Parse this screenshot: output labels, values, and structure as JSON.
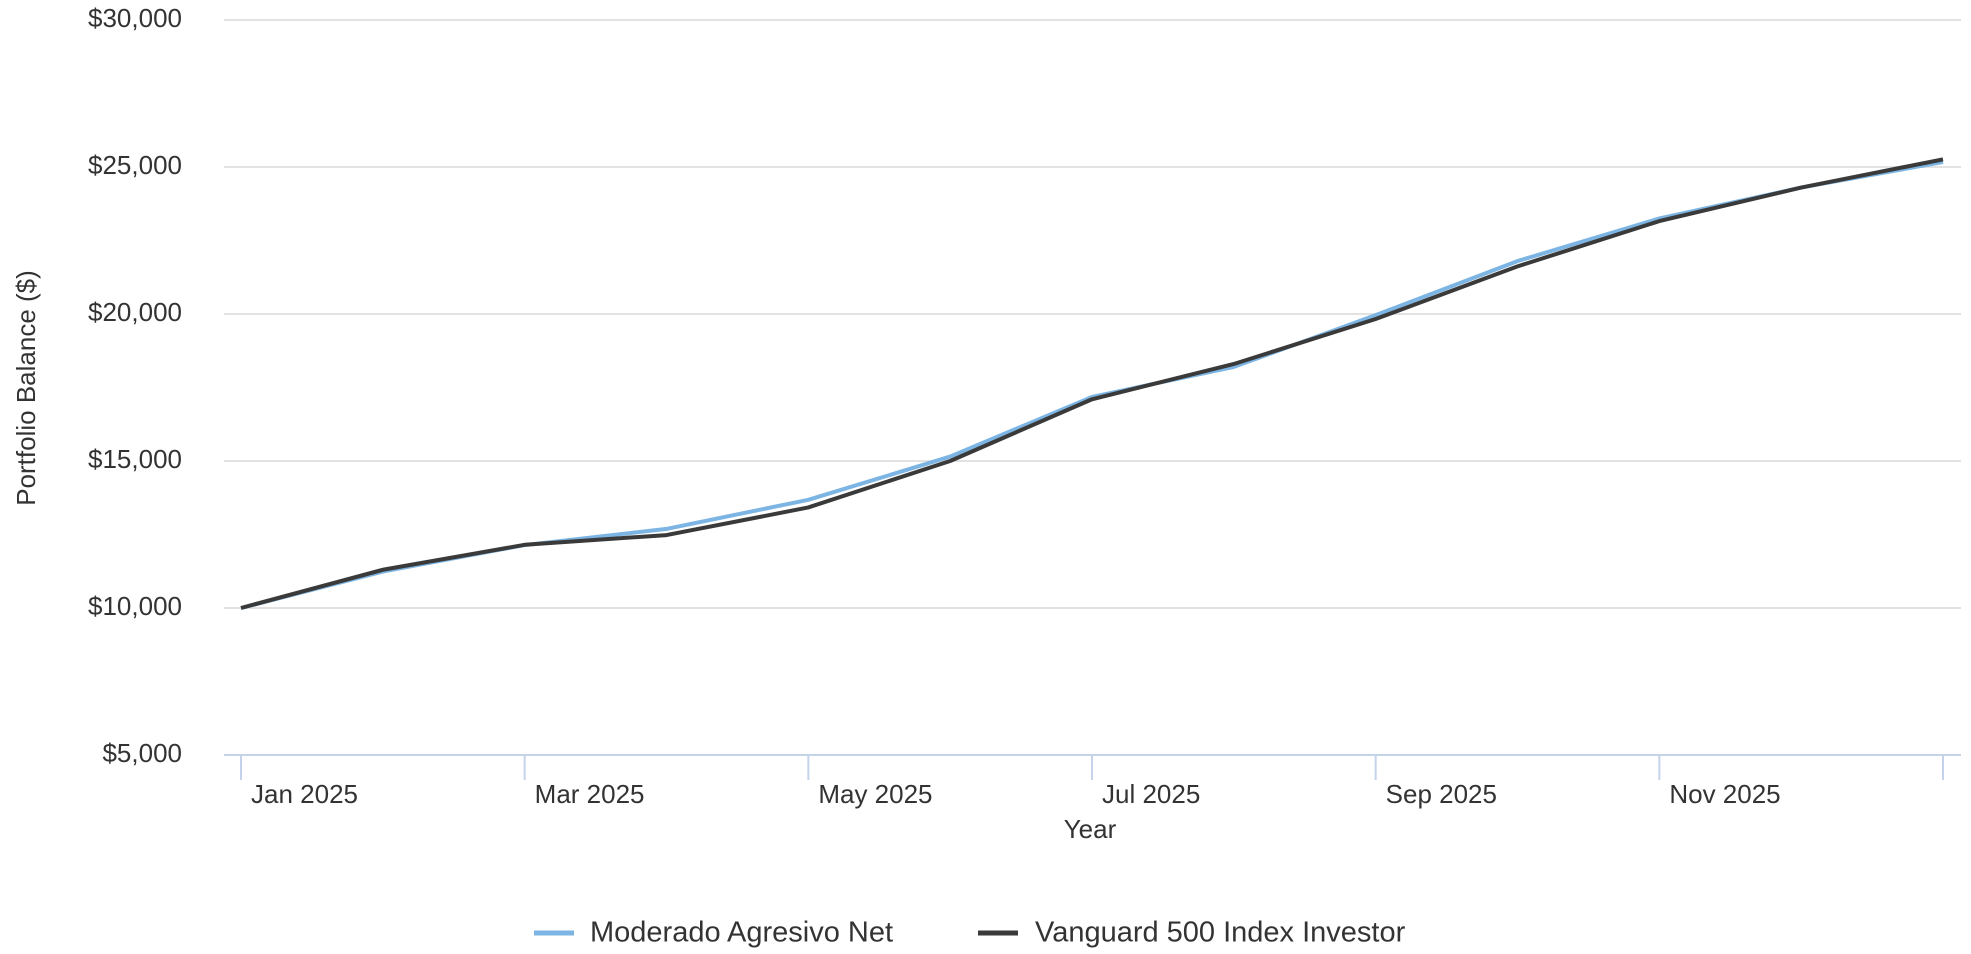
{
  "chart_data": {
    "type": "line",
    "categories": [
      "Jan 2025",
      null,
      "Mar 2025",
      null,
      "May 2025",
      null,
      "Jul 2025",
      null,
      "Sep 2025",
      null,
      "Nov 2025",
      null,
      null
    ],
    "series": [
      {
        "name": "Moderado Agresivo Net",
        "color": "#7cb5e3",
        "values": [
          10000,
          11240,
          12140,
          12690,
          13680,
          15150,
          17180,
          18200,
          19960,
          21800,
          23250,
          24300,
          25170
        ]
      },
      {
        "name": "Vanguard 500 Index Investor",
        "color": "#3a3a3a",
        "values": [
          10000,
          11300,
          12150,
          12480,
          13420,
          15000,
          17100,
          18300,
          19830,
          21620,
          23160,
          24300,
          25260
        ]
      }
    ],
    "ylim": [
      5000,
      30000
    ],
    "yticks": [
      {
        "value": 5000,
        "label": "$5,000"
      },
      {
        "value": 10000,
        "label": "$10,000"
      },
      {
        "value": 15000,
        "label": "$15,000"
      },
      {
        "value": 20000,
        "label": "$20,000"
      },
      {
        "value": 25000,
        "label": "$25,000"
      },
      {
        "value": 30000,
        "label": "$30,000"
      }
    ],
    "xlabel": "Year",
    "ylabel": "Portfolio Balance ($)",
    "grid": true,
    "legend": "bottom"
  }
}
